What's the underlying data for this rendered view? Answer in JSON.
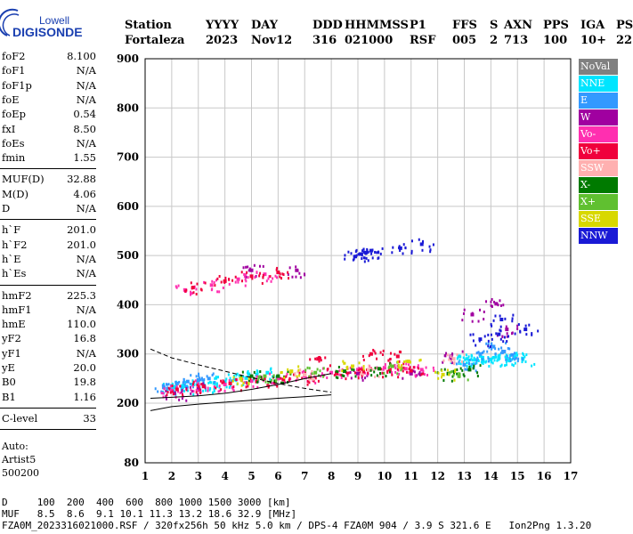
{
  "logo": {
    "line1": "Lowell",
    "line2": "DIGISONDE"
  },
  "header": {
    "labels": [
      "Station",
      "YYYY",
      "DAY",
      "DDD",
      "HHMMSS",
      "P1",
      "FFS",
      "S",
      "AXN",
      "PPS",
      "IGA",
      "PS"
    ],
    "values": [
      "Fortaleza",
      "2023",
      "Nov12",
      "316",
      "021000",
      "RSF",
      "005",
      "2",
      "713",
      "100",
      "10+",
      "22"
    ]
  },
  "params": {
    "group1": [
      {
        "label": "foF2",
        "value": "8.100"
      },
      {
        "label": "foF1",
        "value": "N/A"
      },
      {
        "label": "foF1p",
        "value": "N/A"
      },
      {
        "label": "foE",
        "value": "N/A"
      },
      {
        "label": "foEp",
        "value": "0.54"
      },
      {
        "label": "fxI",
        "value": "8.50"
      },
      {
        "label": "foEs",
        "value": "N/A"
      },
      {
        "label": "fmin",
        "value": "1.55"
      }
    ],
    "group2": [
      {
        "label": "MUF(D)",
        "value": "32.88"
      },
      {
        "label": "M(D)",
        "value": "4.06"
      },
      {
        "label": "D",
        "value": "N/A"
      }
    ],
    "group3": [
      {
        "label": "h`F",
        "value": "201.0"
      },
      {
        "label": "h`F2",
        "value": "201.0"
      },
      {
        "label": "h`E",
        "value": "N/A"
      },
      {
        "label": "h`Es",
        "value": "N/A"
      }
    ],
    "group4": [
      {
        "label": "hmF2",
        "value": "225.3"
      },
      {
        "label": "hmF1",
        "value": "N/A"
      },
      {
        "label": "hmE",
        "value": "110.0"
      },
      {
        "label": "yF2",
        "value": "16.8"
      },
      {
        "label": "yF1",
        "value": "N/A"
      },
      {
        "label": "yE",
        "value": "20.0"
      },
      {
        "label": "B0",
        "value": "19.8"
      },
      {
        "label": "B1",
        "value": "1.16"
      }
    ],
    "group5": [
      {
        "label": "C-level",
        "value": "33"
      }
    ],
    "notes": [
      "Auto:",
      "Artist5",
      "500200"
    ]
  },
  "legend": [
    {
      "label": "NoVal",
      "color": "#808080"
    },
    {
      "label": "NNE",
      "color": "#00e5ff"
    },
    {
      "label": "E",
      "color": "#3399ff"
    },
    {
      "label": "W",
      "color": "#a000a0"
    },
    {
      "label": "Vo-",
      "color": "#ff2fb0"
    },
    {
      "label": "Vo+",
      "color": "#f0003c"
    },
    {
      "label": "SSW",
      "color": "#ffb0b0"
    },
    {
      "label": "X-",
      "color": "#007a00"
    },
    {
      "label": "X+",
      "color": "#60c030"
    },
    {
      "label": "SSE",
      "color": "#d8d800"
    },
    {
      "label": "NNW",
      "color": "#1a1ad6"
    }
  ],
  "footer": {
    "line1": "D     100  200  400  600  800 1000 1500 3000 [km]",
    "line2": "MUF   8.5  8.6  9.1 10.1 11.3 13.2 18.6 32.9 [MHz]",
    "line3": "FZA0M_2023316021000.RSF / 320fx256h 50 kHz 5.0 km / DPS-4 FZA0M 904 / 3.9 S 321.6 E   Ion2Png 1.3.20"
  },
  "chart_data": {
    "type": "scatter",
    "xlim": [
      1,
      17
    ],
    "ylim": [
      80,
      900
    ],
    "x_ticks": [
      1,
      2,
      3,
      4,
      5,
      6,
      7,
      8,
      9,
      10,
      11,
      12,
      13,
      14,
      15,
      16,
      17
    ],
    "y_ticks": [
      80,
      200,
      300,
      400,
      500,
      600,
      700,
      800,
      900
    ],
    "grid": true,
    "series": [
      {
        "name": "NNE",
        "points": [
          [
            2.0,
            235
          ],
          [
            2.4,
            232
          ],
          [
            2.8,
            238
          ],
          [
            3.2,
            236
          ],
          [
            3.6,
            241
          ],
          [
            4.0,
            244
          ],
          [
            4.4,
            248
          ],
          [
            4.8,
            251
          ],
          [
            12.8,
            295
          ],
          [
            13.1,
            290
          ],
          [
            13.4,
            288
          ],
          [
            13.7,
            286
          ],
          [
            14.0,
            289
          ],
          [
            14.3,
            292
          ],
          [
            14.6,
            290
          ],
          [
            14.9,
            293
          ],
          [
            15.2,
            291
          ],
          [
            5.6,
            262
          ],
          [
            5.2,
            258
          ]
        ]
      },
      {
        "name": "E",
        "points": [
          [
            1.7,
            232
          ],
          [
            2.2,
            240
          ],
          [
            2.6,
            244
          ],
          [
            3.0,
            247
          ],
          [
            3.4,
            250
          ],
          [
            13.0,
            278
          ],
          [
            13.6,
            300
          ],
          [
            14.1,
            315
          ],
          [
            14.5,
            305
          ],
          [
            14.8,
            298
          ]
        ]
      },
      {
        "name": "W",
        "points": [
          [
            2.1,
            220
          ],
          [
            3.0,
            230
          ],
          [
            5.0,
            470
          ],
          [
            6.7,
            470
          ],
          [
            9.0,
            260
          ],
          [
            11.0,
            260
          ],
          [
            13.3,
            380
          ],
          [
            14.2,
            402
          ],
          [
            14.6,
            350
          ],
          [
            12.5,
            295
          ]
        ]
      },
      {
        "name": "Vo-",
        "points": [
          [
            2.0,
            226
          ],
          [
            3.0,
            236
          ],
          [
            4.0,
            238
          ],
          [
            5.0,
            245
          ],
          [
            6.0,
            250
          ],
          [
            7.0,
            255
          ],
          [
            8.0,
            262
          ],
          [
            9.0,
            268
          ],
          [
            10.0,
            272
          ],
          [
            10.8,
            270
          ],
          [
            11.4,
            268
          ],
          [
            2.5,
            430
          ],
          [
            3.5,
            440
          ],
          [
            4.5,
            452
          ],
          [
            5.5,
            462
          ]
        ]
      },
      {
        "name": "Vo+",
        "points": [
          [
            2.2,
            228
          ],
          [
            3.2,
            234
          ],
          [
            4.2,
            240
          ],
          [
            5.2,
            244
          ],
          [
            6.2,
            248
          ],
          [
            7.2,
            252
          ],
          [
            8.2,
            260
          ],
          [
            9.2,
            264
          ],
          [
            10.2,
            268
          ],
          [
            11.0,
            266
          ],
          [
            7.5,
            290
          ],
          [
            9.5,
            300
          ],
          [
            10.5,
            295
          ],
          [
            2.8,
            435
          ],
          [
            4.0,
            448
          ],
          [
            5.0,
            458
          ],
          [
            6.0,
            466
          ]
        ]
      },
      {
        "name": "SSW",
        "points": [
          [
            7.0,
            258
          ],
          [
            9.4,
            268
          ],
          [
            12.6,
            290
          ]
        ]
      },
      {
        "name": "X-",
        "points": [
          [
            5.0,
            255
          ],
          [
            6.0,
            255
          ],
          [
            8.5,
            265
          ],
          [
            9.8,
            270
          ],
          [
            12.4,
            260
          ],
          [
            13.2,
            268
          ]
        ]
      },
      {
        "name": "X+",
        "points": [
          [
            5.5,
            255
          ],
          [
            7.4,
            262
          ],
          [
            10.3,
            275
          ],
          [
            12.8,
            255
          ]
        ]
      },
      {
        "name": "SSE",
        "points": [
          [
            4.6,
            250
          ],
          [
            6.5,
            265
          ],
          [
            8.8,
            275
          ],
          [
            10.9,
            285
          ],
          [
            12.2,
            258
          ]
        ]
      },
      {
        "name": "NNW",
        "points": [
          [
            8.9,
            498
          ],
          [
            9.1,
            503
          ],
          [
            9.3,
            506
          ],
          [
            9.5,
            510
          ],
          [
            10.6,
            515
          ],
          [
            11.4,
            523
          ],
          [
            13.6,
            330
          ],
          [
            14.4,
            370
          ],
          [
            14.3,
            340
          ],
          [
            15.3,
            350
          ]
        ]
      }
    ],
    "profile_curves": [
      {
        "points": [
          [
            1.2,
            185
          ],
          [
            2,
            193
          ],
          [
            3,
            198
          ],
          [
            4,
            202
          ],
          [
            5,
            206
          ],
          [
            6,
            210
          ],
          [
            7,
            213
          ],
          [
            8,
            217
          ]
        ]
      },
      {
        "points": [
          [
            1.2,
            210
          ],
          [
            2,
            212
          ],
          [
            3,
            215
          ],
          [
            4,
            220
          ],
          [
            5,
            228
          ],
          [
            6,
            238
          ],
          [
            7,
            250
          ],
          [
            8,
            260
          ]
        ]
      },
      {
        "points": [
          [
            1.2,
            310
          ],
          [
            2,
            292
          ],
          [
            3,
            278
          ],
          [
            4,
            265
          ],
          [
            5,
            252
          ],
          [
            6,
            240
          ],
          [
            7,
            230
          ],
          [
            8,
            222
          ]
        ]
      }
    ]
  }
}
